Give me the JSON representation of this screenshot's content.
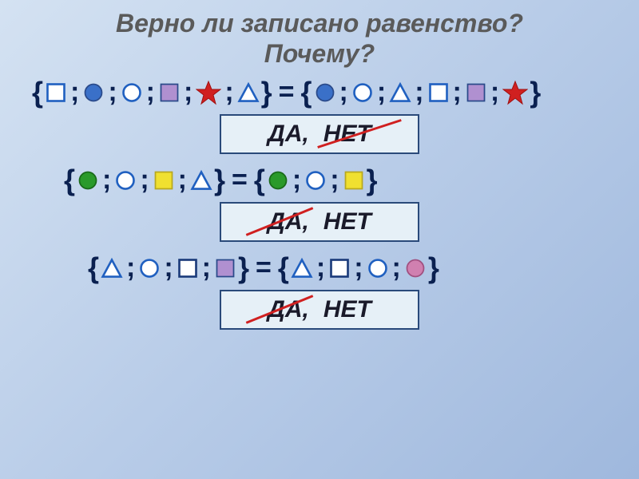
{
  "title_line1": "Верно ли записано равенство?",
  "title_line2": "Почему?",
  "answers": {
    "da": "ДА,",
    "net": "НЕТ"
  },
  "shapes": {
    "square_outline_blue": {
      "type": "square",
      "fill": "#ffffff",
      "stroke": "#2060c0",
      "sw": 3
    },
    "circle_blue_filled": {
      "type": "circle",
      "fill": "#3a70c8",
      "stroke": "#2a4a8a",
      "sw": 2
    },
    "circle_outline_blue": {
      "type": "circle",
      "fill": "#ffffff",
      "stroke": "#2060c0",
      "sw": 3
    },
    "square_purple_filled": {
      "type": "square",
      "fill": "#b090d0",
      "stroke": "#2a4a8a",
      "sw": 2
    },
    "star_red": {
      "type": "star",
      "fill": "#d02020",
      "stroke": "#a01010",
      "sw": 1
    },
    "triangle_outline_blue": {
      "type": "triangle",
      "fill": "#ffffff",
      "stroke": "#2060c0",
      "sw": 3
    },
    "circle_green_filled": {
      "type": "circle",
      "fill": "#2a9a2a",
      "stroke": "#1a6a1a",
      "sw": 2
    },
    "square_yellow_filled": {
      "type": "square",
      "fill": "#f0e030",
      "stroke": "#b8a820",
      "sw": 2
    },
    "square_outline_navy": {
      "type": "square",
      "fill": "#ffffff",
      "stroke": "#1a3a7a",
      "sw": 3
    },
    "circle_pink_filled": {
      "type": "circle",
      "fill": "#d080b0",
      "stroke": "#a05080",
      "sw": 2
    }
  },
  "row1": {
    "left": [
      "square_outline_blue",
      "circle_blue_filled",
      "circle_outline_blue",
      "square_purple_filled",
      "star_red",
      "triangle_outline_blue"
    ],
    "right": [
      "circle_blue_filled",
      "circle_outline_blue",
      "triangle_outline_blue",
      "square_outline_blue",
      "square_purple_filled",
      "star_red"
    ],
    "strike": "net"
  },
  "row2": {
    "left": [
      "circle_green_filled",
      "circle_outline_blue",
      "square_yellow_filled",
      "triangle_outline_blue"
    ],
    "right": [
      "circle_green_filled",
      "circle_outline_blue",
      "square_yellow_filled"
    ],
    "strike": "da"
  },
  "row3": {
    "left": [
      "triangle_outline_blue",
      "circle_outline_blue",
      "square_outline_navy",
      "square_purple_filled"
    ],
    "right": [
      "triangle_outline_blue",
      "square_outline_navy",
      "circle_outline_blue",
      "circle_pink_filled"
    ],
    "strike": "da"
  }
}
